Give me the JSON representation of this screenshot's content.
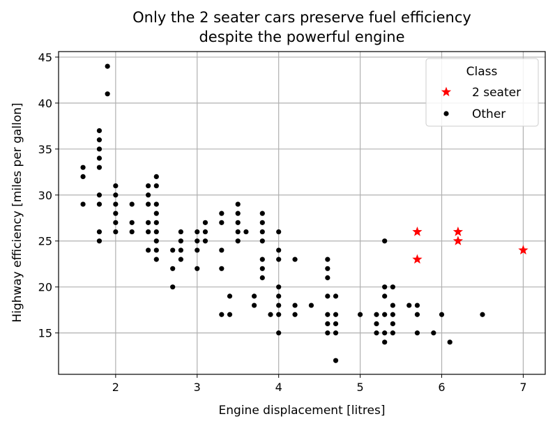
{
  "chart_data": {
    "type": "scatter",
    "title_line1": "Only the 2 seater cars preserve fuel efficiency",
    "title_line2": "despite the powerful engine",
    "xlabel": "Engine displacement [litres]",
    "ylabel": "Highway efficiency [miles per gallon]",
    "xlim": [
      1.3,
      7.27
    ],
    "ylim": [
      10.5,
      45.6
    ],
    "xticks": [
      2,
      3,
      4,
      5,
      6,
      7
    ],
    "yticks": [
      15,
      20,
      25,
      30,
      35,
      40,
      45
    ],
    "grid": true,
    "legend": {
      "title": "Class",
      "location": "top-right",
      "entries": [
        "2 seater",
        "Other"
      ]
    },
    "series": [
      {
        "name": "2 seater",
        "marker": "star",
        "color": "#ff0000",
        "points": [
          [
            5.7,
            26
          ],
          [
            5.7,
            23
          ],
          [
            6.2,
            26
          ],
          [
            6.2,
            25
          ],
          [
            7.0,
            24
          ]
        ]
      },
      {
        "name": "Other",
        "marker": "circle",
        "color": "#000000",
        "points": [
          [
            1.6,
            33
          ],
          [
            1.6,
            32
          ],
          [
            1.6,
            29
          ],
          [
            1.8,
            37
          ],
          [
            1.8,
            36
          ],
          [
            1.8,
            35
          ],
          [
            1.8,
            34
          ],
          [
            1.8,
            33
          ],
          [
            1.8,
            30
          ],
          [
            1.8,
            29
          ],
          [
            1.8,
            26
          ],
          [
            1.8,
            25
          ],
          [
            1.9,
            44
          ],
          [
            1.9,
            41
          ],
          [
            2.0,
            31
          ],
          [
            2.0,
            30
          ],
          [
            2.0,
            29
          ],
          [
            2.0,
            28
          ],
          [
            2.0,
            27
          ],
          [
            2.0,
            26
          ],
          [
            2.2,
            29
          ],
          [
            2.2,
            27
          ],
          [
            2.2,
            26
          ],
          [
            2.4,
            31
          ],
          [
            2.4,
            30
          ],
          [
            2.4,
            29
          ],
          [
            2.4,
            27
          ],
          [
            2.4,
            26
          ],
          [
            2.4,
            24
          ],
          [
            2.5,
            32
          ],
          [
            2.5,
            31
          ],
          [
            2.5,
            29
          ],
          [
            2.5,
            28
          ],
          [
            2.5,
            27
          ],
          [
            2.5,
            26
          ],
          [
            2.5,
            25
          ],
          [
            2.5,
            24
          ],
          [
            2.5,
            23
          ],
          [
            2.7,
            24
          ],
          [
            2.7,
            22
          ],
          [
            2.7,
            20
          ],
          [
            2.8,
            26
          ],
          [
            2.8,
            25
          ],
          [
            2.8,
            24
          ],
          [
            2.8,
            23
          ],
          [
            3.0,
            26
          ],
          [
            3.0,
            25
          ],
          [
            3.0,
            24
          ],
          [
            3.0,
            22
          ],
          [
            3.1,
            27
          ],
          [
            3.1,
            26
          ],
          [
            3.1,
            25
          ],
          [
            3.3,
            28
          ],
          [
            3.3,
            27
          ],
          [
            3.3,
            24
          ],
          [
            3.3,
            22
          ],
          [
            3.3,
            17
          ],
          [
            3.4,
            19
          ],
          [
            3.4,
            17
          ],
          [
            3.5,
            29
          ],
          [
            3.5,
            28
          ],
          [
            3.5,
            27
          ],
          [
            3.5,
            26
          ],
          [
            3.5,
            25
          ],
          [
            3.6,
            26
          ],
          [
            3.7,
            19
          ],
          [
            3.7,
            18
          ],
          [
            3.8,
            28
          ],
          [
            3.8,
            27
          ],
          [
            3.8,
            26
          ],
          [
            3.8,
            25
          ],
          [
            3.8,
            23
          ],
          [
            3.8,
            22
          ],
          [
            3.8,
            21
          ],
          [
            3.9,
            17
          ],
          [
            4.0,
            26
          ],
          [
            4.0,
            24
          ],
          [
            4.0,
            23
          ],
          [
            4.0,
            20
          ],
          [
            4.0,
            19
          ],
          [
            4.0,
            18
          ],
          [
            4.0,
            17
          ],
          [
            4.0,
            15
          ],
          [
            4.2,
            23
          ],
          [
            4.2,
            18
          ],
          [
            4.2,
            17
          ],
          [
            4.4,
            18
          ],
          [
            4.6,
            23
          ],
          [
            4.6,
            22
          ],
          [
            4.6,
            21
          ],
          [
            4.6,
            19
          ],
          [
            4.6,
            17
          ],
          [
            4.6,
            16
          ],
          [
            4.6,
            15
          ],
          [
            4.7,
            19
          ],
          [
            4.7,
            17
          ],
          [
            4.7,
            16
          ],
          [
            4.7,
            15
          ],
          [
            4.7,
            12
          ],
          [
            5.0,
            17
          ],
          [
            5.2,
            17
          ],
          [
            5.2,
            16
          ],
          [
            5.2,
            15
          ],
          [
            5.3,
            25
          ],
          [
            5.3,
            20
          ],
          [
            5.3,
            19
          ],
          [
            5.3,
            17
          ],
          [
            5.3,
            15
          ],
          [
            5.3,
            14
          ],
          [
            5.4,
            20
          ],
          [
            5.4,
            18
          ],
          [
            5.4,
            17
          ],
          [
            5.4,
            16
          ],
          [
            5.4,
            15
          ],
          [
            5.6,
            18
          ],
          [
            5.7,
            18
          ],
          [
            5.7,
            17
          ],
          [
            5.7,
            15
          ],
          [
            5.9,
            15
          ],
          [
            6.0,
            17
          ],
          [
            6.1,
            14
          ],
          [
            6.5,
            17
          ]
        ]
      }
    ]
  }
}
